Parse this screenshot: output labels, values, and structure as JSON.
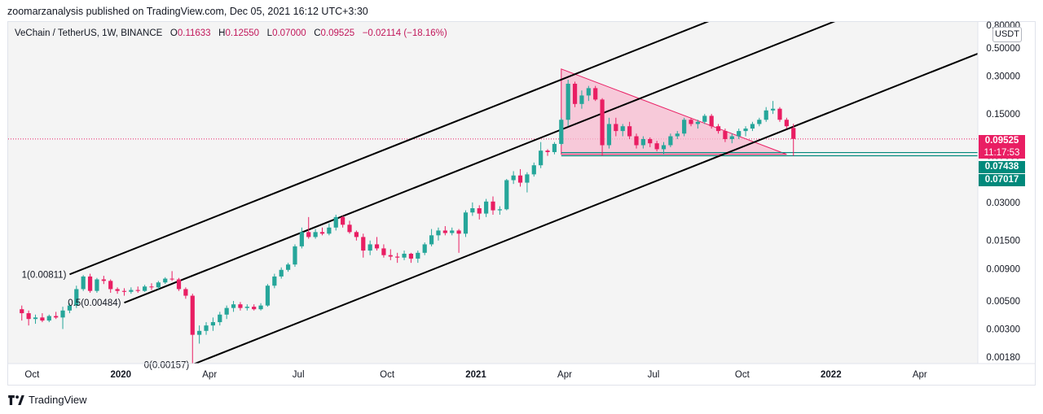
{
  "header": {
    "published": "zoomarzanalysis published on TradingView.com, Dec 05, 2021 16:12 UTC+3:30"
  },
  "symbol": {
    "name": "VeChain / TetherUS, 1W, BINANCE",
    "o_label": "O",
    "o_value": "0.11633",
    "h_label": "H",
    "h_value": "0.12550",
    "l_label": "L",
    "l_value": "0.07000",
    "c_label": "C",
    "c_value": "0.09525",
    "change": "−0.02114 (−18.16%)"
  },
  "currency_button": "USDT",
  "price_tags": {
    "last_price": "0.09525",
    "countdown": "11:17:53",
    "level_1": "0.07438",
    "level_2": "0.07017"
  },
  "fib_labels": {
    "level_1": "1(0.00811)",
    "level_05": "0.5(0.00484)",
    "level_0": "0(0.00157)"
  },
  "footer": {
    "brand": "TradingView"
  },
  "colors": {
    "up": "#26a69a",
    "down": "#e91e63",
    "triangle_fill": "#f8bbd0",
    "triangle_stroke": "#e91e63",
    "level_line": "#00897b",
    "channel": "#000000"
  },
  "chart_data": {
    "type": "candlestick",
    "title": "VeChain / TetherUS, 1W, BINANCE",
    "y_scale": "log",
    "ylim": [
      0.0016,
      0.8
    ],
    "y_ticks": [
      "0.80000",
      "0.50000",
      "0.30000",
      "0.15000",
      "0.07000",
      "0.03000",
      "0.01500",
      "0.00900",
      "0.00500",
      "0.00300",
      "0.00180"
    ],
    "x_ticks": [
      "Oct",
      "2020",
      "Apr",
      "Jul",
      "Oct",
      "2021",
      "Apr",
      "Jul",
      "Oct",
      "2022",
      "Apr"
    ],
    "x_range_weeks": [
      -2,
      140
    ],
    "x_tick_weeks": [
      1.5,
      14.5,
      27.5,
      40.5,
      53.5,
      66.5,
      79.5,
      92.5,
      105.5,
      118.5,
      131.5
    ],
    "last_price": 0.09525,
    "horizontal_levels": [
      0.07438,
      0.07017
    ],
    "fib_channel_levels": [
      0.00811,
      0.00484,
      0.00157
    ],
    "candles": [
      {
        "w": 0,
        "o": 0.0043,
        "h": 0.0046,
        "l": 0.0035,
        "c": 0.004
      },
      {
        "w": 1,
        "o": 0.004,
        "h": 0.0042,
        "l": 0.0032,
        "c": 0.0036
      },
      {
        "w": 2,
        "o": 0.0036,
        "h": 0.0039,
        "l": 0.0033,
        "c": 0.0037
      },
      {
        "w": 3,
        "o": 0.0037,
        "h": 0.004,
        "l": 0.0034,
        "c": 0.0035
      },
      {
        "w": 4,
        "o": 0.0035,
        "h": 0.0039,
        "l": 0.0034,
        "c": 0.0038
      },
      {
        "w": 5,
        "o": 0.0038,
        "h": 0.0041,
        "l": 0.0036,
        "c": 0.0037
      },
      {
        "w": 6,
        "o": 0.0037,
        "h": 0.0045,
        "l": 0.003,
        "c": 0.0042
      },
      {
        "w": 7,
        "o": 0.0042,
        "h": 0.0048,
        "l": 0.004,
        "c": 0.0046
      },
      {
        "w": 8,
        "o": 0.0046,
        "h": 0.0066,
        "l": 0.0044,
        "c": 0.0062
      },
      {
        "w": 9,
        "o": 0.0062,
        "h": 0.008,
        "l": 0.006,
        "c": 0.0078
      },
      {
        "w": 10,
        "o": 0.0078,
        "h": 0.0082,
        "l": 0.0058,
        "c": 0.006
      },
      {
        "w": 11,
        "o": 0.006,
        "h": 0.0076,
        "l": 0.0058,
        "c": 0.0074
      },
      {
        "w": 12,
        "o": 0.0074,
        "h": 0.0079,
        "l": 0.0068,
        "c": 0.0072
      },
      {
        "w": 13,
        "o": 0.0072,
        "h": 0.0074,
        "l": 0.0058,
        "c": 0.0062
      },
      {
        "w": 14,
        "o": 0.0062,
        "h": 0.0064,
        "l": 0.0057,
        "c": 0.006
      },
      {
        "w": 15,
        "o": 0.006,
        "h": 0.0063,
        "l": 0.0055,
        "c": 0.0059
      },
      {
        "w": 16,
        "o": 0.0059,
        "h": 0.0064,
        "l": 0.0057,
        "c": 0.0061
      },
      {
        "w": 17,
        "o": 0.0061,
        "h": 0.0065,
        "l": 0.0058,
        "c": 0.006
      },
      {
        "w": 18,
        "o": 0.006,
        "h": 0.0067,
        "l": 0.0059,
        "c": 0.0065
      },
      {
        "w": 19,
        "o": 0.0065,
        "h": 0.0069,
        "l": 0.0061,
        "c": 0.0064
      },
      {
        "w": 20,
        "o": 0.0064,
        "h": 0.0072,
        "l": 0.0062,
        "c": 0.007
      },
      {
        "w": 21,
        "o": 0.007,
        "h": 0.0077,
        "l": 0.0068,
        "c": 0.0075
      },
      {
        "w": 22,
        "o": 0.0075,
        "h": 0.0086,
        "l": 0.0072,
        "c": 0.0074
      },
      {
        "w": 23,
        "o": 0.0074,
        "h": 0.0076,
        "l": 0.006,
        "c": 0.0062
      },
      {
        "w": 24,
        "o": 0.0062,
        "h": 0.0064,
        "l": 0.0052,
        "c": 0.0055
      },
      {
        "w": 25,
        "o": 0.0055,
        "h": 0.0057,
        "l": 0.00157,
        "c": 0.0027
      },
      {
        "w": 26,
        "o": 0.0027,
        "h": 0.0032,
        "l": 0.0023,
        "c": 0.0029
      },
      {
        "w": 27,
        "o": 0.0029,
        "h": 0.0034,
        "l": 0.0027,
        "c": 0.0032
      },
      {
        "w": 28,
        "o": 0.0032,
        "h": 0.0037,
        "l": 0.0029,
        "c": 0.0034
      },
      {
        "w": 29,
        "o": 0.0034,
        "h": 0.0041,
        "l": 0.0032,
        "c": 0.0039
      },
      {
        "w": 30,
        "o": 0.0039,
        "h": 0.0046,
        "l": 0.0036,
        "c": 0.0044
      },
      {
        "w": 31,
        "o": 0.0044,
        "h": 0.005,
        "l": 0.0041,
        "c": 0.0047
      },
      {
        "w": 32,
        "o": 0.0047,
        "h": 0.0049,
        "l": 0.0042,
        "c": 0.0044
      },
      {
        "w": 33,
        "o": 0.0044,
        "h": 0.0047,
        "l": 0.0042,
        "c": 0.0045
      },
      {
        "w": 34,
        "o": 0.0045,
        "h": 0.0047,
        "l": 0.0042,
        "c": 0.0043
      },
      {
        "w": 35,
        "o": 0.0043,
        "h": 0.0048,
        "l": 0.0042,
        "c": 0.0046
      },
      {
        "w": 36,
        "o": 0.0046,
        "h": 0.0068,
        "l": 0.0045,
        "c": 0.0066
      },
      {
        "w": 37,
        "o": 0.0066,
        "h": 0.0082,
        "l": 0.0063,
        "c": 0.0078
      },
      {
        "w": 38,
        "o": 0.0078,
        "h": 0.0092,
        "l": 0.0075,
        "c": 0.0088
      },
      {
        "w": 39,
        "o": 0.0088,
        "h": 0.01,
        "l": 0.0085,
        "c": 0.0097
      },
      {
        "w": 40,
        "o": 0.0097,
        "h": 0.014,
        "l": 0.0093,
        "c": 0.0135
      },
      {
        "w": 41,
        "o": 0.0135,
        "h": 0.019,
        "l": 0.013,
        "c": 0.0175
      },
      {
        "w": 42,
        "o": 0.0175,
        "h": 0.023,
        "l": 0.0155,
        "c": 0.016
      },
      {
        "w": 43,
        "o": 0.016,
        "h": 0.0185,
        "l": 0.0155,
        "c": 0.0175
      },
      {
        "w": 44,
        "o": 0.0175,
        "h": 0.019,
        "l": 0.0165,
        "c": 0.017
      },
      {
        "w": 45,
        "o": 0.017,
        "h": 0.0205,
        "l": 0.0165,
        "c": 0.019
      },
      {
        "w": 46,
        "o": 0.019,
        "h": 0.024,
        "l": 0.018,
        "c": 0.023
      },
      {
        "w": 47,
        "o": 0.023,
        "h": 0.0235,
        "l": 0.019,
        "c": 0.02
      },
      {
        "w": 48,
        "o": 0.02,
        "h": 0.0215,
        "l": 0.017,
        "c": 0.0175
      },
      {
        "w": 49,
        "o": 0.0175,
        "h": 0.018,
        "l": 0.015,
        "c": 0.016
      },
      {
        "w": 50,
        "o": 0.016,
        "h": 0.017,
        "l": 0.011,
        "c": 0.0125
      },
      {
        "w": 51,
        "o": 0.0125,
        "h": 0.015,
        "l": 0.0115,
        "c": 0.014
      },
      {
        "w": 52,
        "o": 0.014,
        "h": 0.016,
        "l": 0.0125,
        "c": 0.013
      },
      {
        "w": 53,
        "o": 0.013,
        "h": 0.014,
        "l": 0.011,
        "c": 0.0115
      },
      {
        "w": 54,
        "o": 0.0115,
        "h": 0.0128,
        "l": 0.0105,
        "c": 0.0112
      },
      {
        "w": 55,
        "o": 0.0112,
        "h": 0.012,
        "l": 0.01,
        "c": 0.011
      },
      {
        "w": 56,
        "o": 0.011,
        "h": 0.0125,
        "l": 0.0105,
        "c": 0.0118
      },
      {
        "w": 57,
        "o": 0.0118,
        "h": 0.012,
        "l": 0.01,
        "c": 0.0108
      },
      {
        "w": 58,
        "o": 0.0108,
        "h": 0.0125,
        "l": 0.01,
        "c": 0.012
      },
      {
        "w": 59,
        "o": 0.012,
        "h": 0.0145,
        "l": 0.0115,
        "c": 0.014
      },
      {
        "w": 60,
        "o": 0.014,
        "h": 0.0185,
        "l": 0.0135,
        "c": 0.0165
      },
      {
        "w": 61,
        "o": 0.0165,
        "h": 0.019,
        "l": 0.015,
        "c": 0.018
      },
      {
        "w": 62,
        "o": 0.018,
        "h": 0.0195,
        "l": 0.0165,
        "c": 0.0172
      },
      {
        "w": 63,
        "o": 0.0172,
        "h": 0.019,
        "l": 0.0165,
        "c": 0.018
      },
      {
        "w": 64,
        "o": 0.018,
        "h": 0.0185,
        "l": 0.012,
        "c": 0.017
      },
      {
        "w": 65,
        "o": 0.017,
        "h": 0.026,
        "l": 0.016,
        "c": 0.025
      },
      {
        "w": 66,
        "o": 0.025,
        "h": 0.03,
        "l": 0.0235,
        "c": 0.027
      },
      {
        "w": 67,
        "o": 0.027,
        "h": 0.0285,
        "l": 0.022,
        "c": 0.0245
      },
      {
        "w": 68,
        "o": 0.0245,
        "h": 0.032,
        "l": 0.023,
        "c": 0.0305
      },
      {
        "w": 69,
        "o": 0.0305,
        "h": 0.0335,
        "l": 0.024,
        "c": 0.026
      },
      {
        "w": 70,
        "o": 0.026,
        "h": 0.028,
        "l": 0.024,
        "c": 0.0265
      },
      {
        "w": 71,
        "o": 0.0265,
        "h": 0.046,
        "l": 0.026,
        "c": 0.045
      },
      {
        "w": 72,
        "o": 0.045,
        "h": 0.053,
        "l": 0.042,
        "c": 0.049
      },
      {
        "w": 73,
        "o": 0.049,
        "h": 0.055,
        "l": 0.04,
        "c": 0.043
      },
      {
        "w": 74,
        "o": 0.043,
        "h": 0.052,
        "l": 0.036,
        "c": 0.05
      },
      {
        "w": 75,
        "o": 0.05,
        "h": 0.062,
        "l": 0.048,
        "c": 0.059
      },
      {
        "w": 76,
        "o": 0.059,
        "h": 0.09,
        "l": 0.056,
        "c": 0.077
      },
      {
        "w": 77,
        "o": 0.077,
        "h": 0.079,
        "l": 0.07,
        "c": 0.075
      },
      {
        "w": 78,
        "o": 0.075,
        "h": 0.09,
        "l": 0.072,
        "c": 0.087
      },
      {
        "w": 79,
        "o": 0.087,
        "h": 0.14,
        "l": 0.085,
        "c": 0.135
      },
      {
        "w": 80,
        "o": 0.135,
        "h": 0.28,
        "l": 0.12,
        "c": 0.26
      },
      {
        "w": 81,
        "o": 0.26,
        "h": 0.27,
        "l": 0.17,
        "c": 0.18
      },
      {
        "w": 82,
        "o": 0.18,
        "h": 0.23,
        "l": 0.165,
        "c": 0.21
      },
      {
        "w": 83,
        "o": 0.21,
        "h": 0.25,
        "l": 0.19,
        "c": 0.24
      },
      {
        "w": 84,
        "o": 0.24,
        "h": 0.25,
        "l": 0.19,
        "c": 0.195
      },
      {
        "w": 85,
        "o": 0.195,
        "h": 0.2,
        "l": 0.07,
        "c": 0.085
      },
      {
        "w": 86,
        "o": 0.085,
        "h": 0.14,
        "l": 0.08,
        "c": 0.125
      },
      {
        "w": 87,
        "o": 0.125,
        "h": 0.14,
        "l": 0.1,
        "c": 0.11
      },
      {
        "w": 88,
        "o": 0.11,
        "h": 0.125,
        "l": 0.1,
        "c": 0.12
      },
      {
        "w": 89,
        "o": 0.12,
        "h": 0.13,
        "l": 0.095,
        "c": 0.1
      },
      {
        "w": 90,
        "o": 0.1,
        "h": 0.105,
        "l": 0.08,
        "c": 0.085
      },
      {
        "w": 91,
        "o": 0.085,
        "h": 0.1,
        "l": 0.08,
        "c": 0.095
      },
      {
        "w": 92,
        "o": 0.095,
        "h": 0.098,
        "l": 0.082,
        "c": 0.088
      },
      {
        "w": 93,
        "o": 0.088,
        "h": 0.092,
        "l": 0.076,
        "c": 0.079
      },
      {
        "w": 94,
        "o": 0.079,
        "h": 0.09,
        "l": 0.072,
        "c": 0.085
      },
      {
        "w": 95,
        "o": 0.085,
        "h": 0.105,
        "l": 0.082,
        "c": 0.1
      },
      {
        "w": 96,
        "o": 0.1,
        "h": 0.11,
        "l": 0.095,
        "c": 0.105
      },
      {
        "w": 97,
        "o": 0.105,
        "h": 0.14,
        "l": 0.1,
        "c": 0.135
      },
      {
        "w": 98,
        "o": 0.135,
        "h": 0.14,
        "l": 0.12,
        "c": 0.125
      },
      {
        "w": 99,
        "o": 0.125,
        "h": 0.135,
        "l": 0.115,
        "c": 0.13
      },
      {
        "w": 100,
        "o": 0.13,
        "h": 0.15,
        "l": 0.125,
        "c": 0.145
      },
      {
        "w": 101,
        "o": 0.145,
        "h": 0.15,
        "l": 0.115,
        "c": 0.12
      },
      {
        "w": 102,
        "o": 0.12,
        "h": 0.125,
        "l": 0.105,
        "c": 0.11
      },
      {
        "w": 103,
        "o": 0.11,
        "h": 0.115,
        "l": 0.09,
        "c": 0.095
      },
      {
        "w": 104,
        "o": 0.095,
        "h": 0.105,
        "l": 0.088,
        "c": 0.1
      },
      {
        "w": 105,
        "o": 0.1,
        "h": 0.115,
        "l": 0.095,
        "c": 0.11
      },
      {
        "w": 106,
        "o": 0.11,
        "h": 0.12,
        "l": 0.1,
        "c": 0.115
      },
      {
        "w": 107,
        "o": 0.115,
        "h": 0.13,
        "l": 0.11,
        "c": 0.125
      },
      {
        "w": 108,
        "o": 0.125,
        "h": 0.14,
        "l": 0.12,
        "c": 0.135
      },
      {
        "w": 109,
        "o": 0.135,
        "h": 0.17,
        "l": 0.13,
        "c": 0.16
      },
      {
        "w": 110,
        "o": 0.16,
        "h": 0.19,
        "l": 0.15,
        "c": 0.165
      },
      {
        "w": 111,
        "o": 0.165,
        "h": 0.17,
        "l": 0.13,
        "c": 0.135
      },
      {
        "w": 112,
        "o": 0.135,
        "h": 0.14,
        "l": 0.115,
        "c": 0.12
      },
      {
        "w": 113,
        "o": 0.1163,
        "h": 0.1255,
        "l": 0.07,
        "c": 0.09525
      }
    ]
  }
}
